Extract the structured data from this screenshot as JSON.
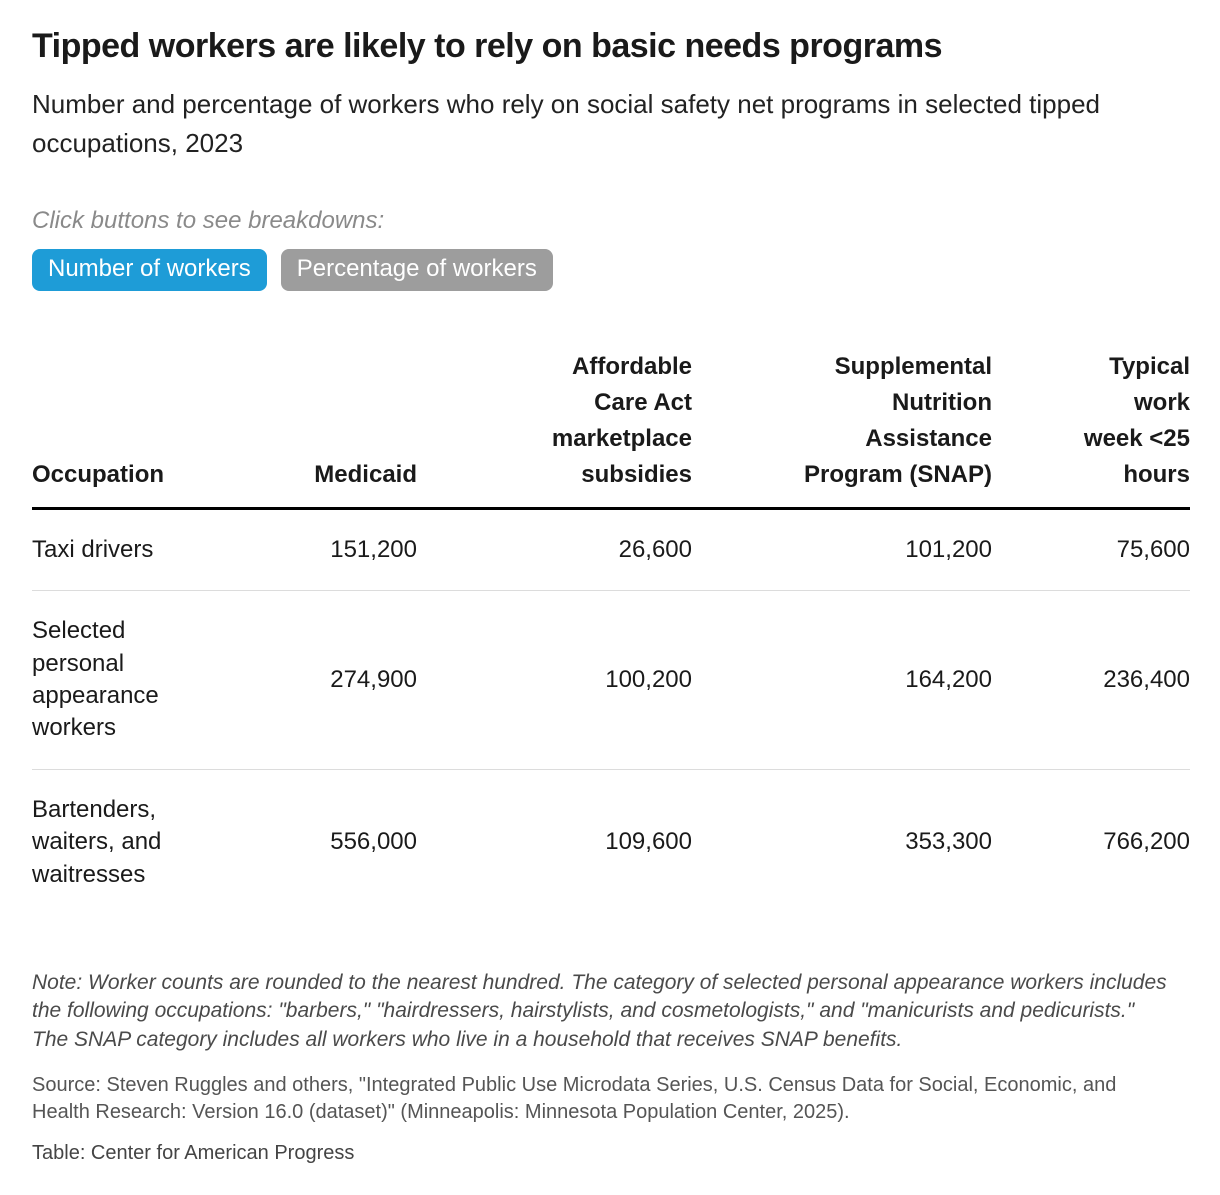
{
  "header": {
    "title": "Tipped workers are likely to rely on basic needs programs",
    "subtitle": "Number and percentage of workers who rely on social safety net programs in selected tipped occupations, 2023",
    "controls_hint": "Click buttons to see breakdowns:",
    "buttons": [
      {
        "label": "Number of workers",
        "state": "active"
      },
      {
        "label": "Percentage of workers",
        "state": "inactive"
      }
    ]
  },
  "colors": {
    "active_button": "#1e9cd7",
    "inactive_button": "#9d9d9d",
    "header_rule": "#000000",
    "row_rule": "#dcdcdc"
  },
  "chart_data": {
    "type": "table",
    "title": "Tipped workers are likely to rely on basic needs programs",
    "subtitle": "Number and percentage of workers who rely on social safety net programs in selected tipped occupations, 2023",
    "selected_view": "Number of workers",
    "columns": [
      "Occupation",
      "Medicaid",
      "Affordable\nCare Act\nmarketplace\nsubsidies",
      "Supplemental\nNutrition\nAssistance\nProgram (SNAP)",
      "Typical\nwork\nweek <25\nhours"
    ],
    "rows": [
      {
        "occupation": "Taxi drivers",
        "values": [
          "151,200",
          "26,600",
          "101,200",
          "75,600"
        ]
      },
      {
        "occupation": "Selected personal appearance workers",
        "values": [
          "274,900",
          "100,200",
          "164,200",
          "236,400"
        ]
      },
      {
        "occupation": "Bartenders, waiters, and waitresses",
        "values": [
          "556,000",
          "109,600",
          "353,300",
          "766,200"
        ]
      }
    ]
  },
  "footer": {
    "note": "Note: Worker counts are rounded to the nearest hundred. The category of selected personal appearance workers includes the following occupations: \"barbers,\" \"hairdressers, hairstylists, and cosmetologists,\" and \"manicurists and pedicurists.\" The SNAP category includes all workers who live in a household that receives SNAP benefits.",
    "source": "Source: Steven Ruggles and others, \"Integrated Public Use Microdata Series, U.S. Census Data for Social, Economic, and Health Research: Version 16.0 (dataset)\" (Minneapolis: Minnesota Population Center, 2025).",
    "credit": "Table: Center for American Progress"
  }
}
